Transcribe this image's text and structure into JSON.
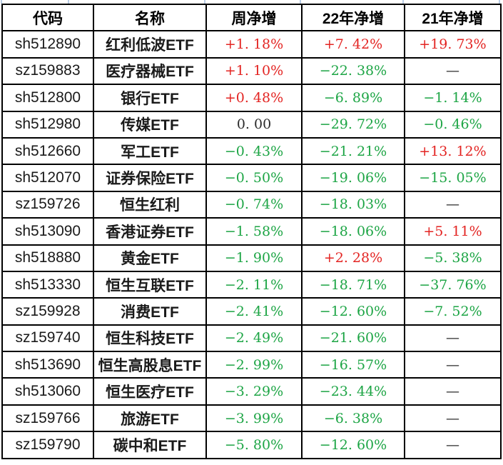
{
  "colors": {
    "up": "#e32422",
    "down": "#1da545",
    "neutral": "#2b2b2b",
    "border": "#000000",
    "gridline": "#b9cce4",
    "background": "#ffffff"
  },
  "table": {
    "columns": [
      "代码",
      "名称",
      "周净增",
      "22年净增",
      "21年净增"
    ],
    "rows": [
      {
        "code": "sh512890",
        "name": "红利低波ETF",
        "week": "+1. 18%",
        "week_trend": "up",
        "y22": "+7. 42%",
        "y22_trend": "up",
        "y21": "+19. 73%",
        "y21_trend": "up"
      },
      {
        "code": "sz159883",
        "name": "医疗器械ETF",
        "week": "+1. 10%",
        "week_trend": "up",
        "y22": "−22. 38%",
        "y22_trend": "down",
        "y21": "—",
        "y21_trend": "neutral"
      },
      {
        "code": "sh512800",
        "name": "银行ETF",
        "week": "+0. 48%",
        "week_trend": "up",
        "y22": "−6. 89%",
        "y22_trend": "down",
        "y21": "−1. 14%",
        "y21_trend": "down"
      },
      {
        "code": "sh512980",
        "name": "传媒ETF",
        "week": "0. 00",
        "week_trend": "neutral",
        "y22": "−29. 72%",
        "y22_trend": "down",
        "y21": "−0. 46%",
        "y21_trend": "down"
      },
      {
        "code": "sh512660",
        "name": "军工ETF",
        "week": "−0. 43%",
        "week_trend": "down",
        "y22": "−21. 21%",
        "y22_trend": "down",
        "y21": "+13. 12%",
        "y21_trend": "up"
      },
      {
        "code": "sh512070",
        "name": "证券保险ETF",
        "week": "−0. 50%",
        "week_trend": "down",
        "y22": "−19. 06%",
        "y22_trend": "down",
        "y21": "−15. 05%",
        "y21_trend": "down"
      },
      {
        "code": "sz159726",
        "name": "恒生红利",
        "week": "−0. 74%",
        "week_trend": "down",
        "y22": "−18. 03%",
        "y22_trend": "down",
        "y21": "—",
        "y21_trend": "neutral"
      },
      {
        "code": "sh513090",
        "name": "香港证券ETF",
        "week": "−1. 58%",
        "week_trend": "down",
        "y22": "−18. 06%",
        "y22_trend": "down",
        "y21": "+5. 11%",
        "y21_trend": "up"
      },
      {
        "code": "sh518880",
        "name": "黄金ETF",
        "week": "−1. 90%",
        "week_trend": "down",
        "y22": "+2. 28%",
        "y22_trend": "up",
        "y21": "−5. 38%",
        "y21_trend": "down"
      },
      {
        "code": "sh513330",
        "name": "恒生互联ETF",
        "week": "−2. 11%",
        "week_trend": "down",
        "y22": "−18. 71%",
        "y22_trend": "down",
        "y21": "−37. 76%",
        "y21_trend": "down"
      },
      {
        "code": "sz159928",
        "name": "消费ETF",
        "week": "−2. 41%",
        "week_trend": "down",
        "y22": "−12. 60%",
        "y22_trend": "down",
        "y21": "−7. 52%",
        "y21_trend": "down"
      },
      {
        "code": "sz159740",
        "name": "恒生科技ETF",
        "week": "−2. 49%",
        "week_trend": "down",
        "y22": "−21. 60%",
        "y22_trend": "down",
        "y21": "—",
        "y21_trend": "neutral"
      },
      {
        "code": "sh513690",
        "name": "恒生高股息ETF",
        "week": "−2. 99%",
        "week_trend": "down",
        "y22": "−16. 57%",
        "y22_trend": "down",
        "y21": "—",
        "y21_trend": "neutral"
      },
      {
        "code": "sh513060",
        "name": "恒生医疗ETF",
        "week": "−3. 29%",
        "week_trend": "down",
        "y22": "−23. 44%",
        "y22_trend": "down",
        "y21": "—",
        "y21_trend": "neutral"
      },
      {
        "code": "sz159766",
        "name": "旅游ETF",
        "week": "−3. 99%",
        "week_trend": "down",
        "y22": "−6. 38%",
        "y22_trend": "down",
        "y21": "—",
        "y21_trend": "neutral"
      },
      {
        "code": "sz159790",
        "name": "碳中和ETF",
        "week": "−5. 80%",
        "week_trend": "down",
        "y22": "−12. 60%",
        "y22_trend": "down",
        "y21": "—",
        "y21_trend": "neutral"
      }
    ]
  }
}
